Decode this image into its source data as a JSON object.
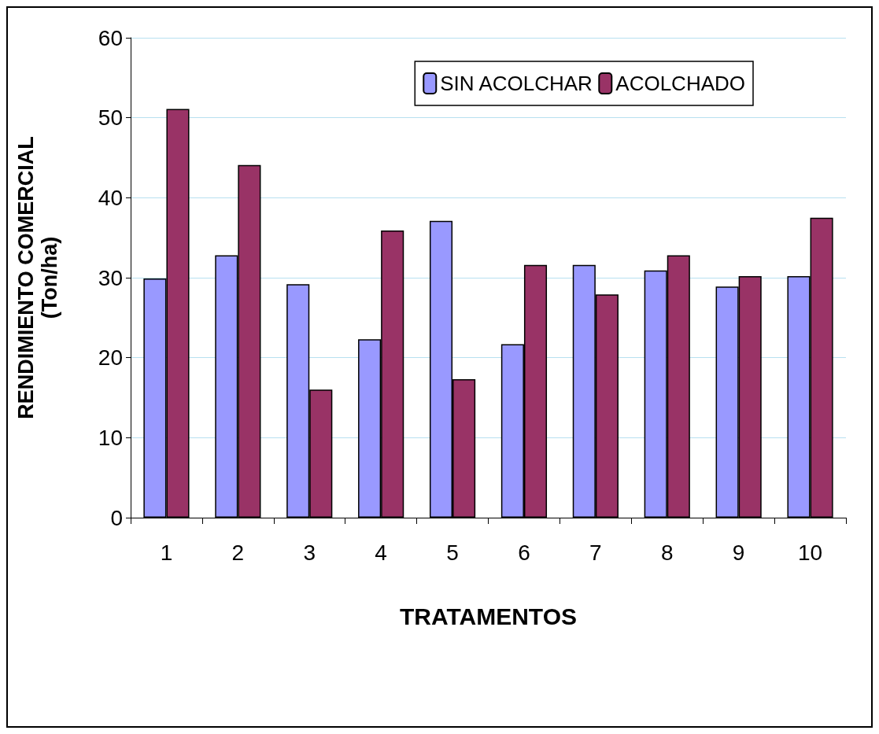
{
  "chart_data": {
    "type": "bar",
    "xlabel": "TRATAMENTOS",
    "ylabel": "RENDIMIENTO COMERCIAL\n(Ton/ha)",
    "categories": [
      "1",
      "2",
      "3",
      "4",
      "5",
      "6",
      "7",
      "8",
      "9",
      "10"
    ],
    "series": [
      {
        "name": "SIN ACOLCHAR",
        "color": "#9999ff",
        "values": [
          29.9,
          32.8,
          29.2,
          22.3,
          37.1,
          21.7,
          31.6,
          30.9,
          28.9,
          30.2
        ]
      },
      {
        "name": "ACOLCHADO",
        "color": "#993366",
        "values": [
          51.1,
          44.1,
          16.0,
          35.9,
          17.3,
          31.6,
          27.9,
          32.8,
          30.2,
          37.5
        ]
      }
    ],
    "ylim": [
      0,
      60
    ],
    "yticks": [
      0,
      10,
      20,
      30,
      40,
      50,
      60
    ],
    "grid": "y",
    "legend": "top right"
  }
}
